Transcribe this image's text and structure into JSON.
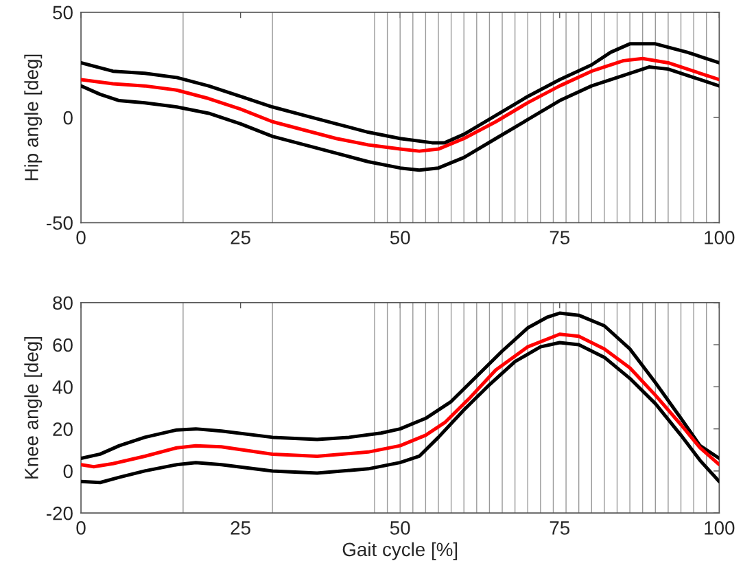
{
  "chart_data": [
    {
      "type": "line",
      "ylabel": "Hip angle [deg]",
      "xlim": [
        0,
        100
      ],
      "xticks": [
        0,
        25,
        50,
        75,
        100
      ],
      "ylim": [
        -50,
        50
      ],
      "yticks": [
        -50,
        0,
        50
      ],
      "grid": false,
      "legend": false,
      "series": [
        {
          "color": "#000000",
          "x": [
            0,
            5,
            10,
            15,
            20,
            25,
            30,
            35,
            40,
            45,
            50,
            55,
            57,
            60,
            65,
            70,
            75,
            80,
            83,
            86,
            90,
            95,
            100
          ],
          "values": [
            26,
            22,
            21,
            19,
            15,
            10,
            5,
            1,
            -3,
            -7,
            -10,
            -12,
            -12,
            -8,
            1,
            10,
            18,
            25,
            31,
            35,
            35,
            31,
            26
          ]
        },
        {
          "color": "#ff0000",
          "x": [
            0,
            5,
            10,
            15,
            20,
            25,
            30,
            35,
            40,
            45,
            50,
            53,
            56,
            60,
            65,
            70,
            75,
            80,
            85,
            88,
            92,
            96,
            100
          ],
          "values": [
            18,
            16,
            15,
            13,
            9,
            4,
            -2,
            -6,
            -10,
            -13,
            -15,
            -16,
            -15,
            -10,
            -2,
            7,
            15,
            22,
            27,
            28,
            26,
            22,
            18
          ]
        },
        {
          "color": "#000000",
          "x": [
            0,
            3,
            6,
            10,
            15,
            20,
            25,
            30,
            35,
            40,
            45,
            50,
            53,
            56,
            60,
            65,
            70,
            75,
            80,
            85,
            89,
            92,
            96,
            100
          ],
          "values": [
            15,
            11,
            8,
            7,
            5,
            2,
            -3,
            -9,
            -13,
            -17,
            -21,
            -24,
            -25,
            -24,
            -19,
            -10,
            -1,
            8,
            15,
            20,
            24,
            23,
            19,
            15
          ]
        }
      ],
      "ref_lines": [
        {
          "axis": "x",
          "value": 16,
          "color": "#999999"
        },
        {
          "axis": "x",
          "value": 30,
          "color": "#999999"
        },
        {
          "axis": "x",
          "value": 46,
          "color": "#999999"
        },
        {
          "axis": "x",
          "value": 48,
          "color": "#999999"
        },
        {
          "axis": "x",
          "value": 50,
          "color": "#999999"
        },
        {
          "axis": "x",
          "value": 52,
          "color": "#999999"
        },
        {
          "axis": "x",
          "value": 54,
          "color": "#999999"
        },
        {
          "axis": "x",
          "value": 56,
          "color": "#999999"
        },
        {
          "axis": "x",
          "value": 58,
          "color": "#999999"
        },
        {
          "axis": "x",
          "value": 60,
          "color": "#999999"
        },
        {
          "axis": "x",
          "value": 62,
          "color": "#999999"
        },
        {
          "axis": "x",
          "value": 64,
          "color": "#999999"
        },
        {
          "axis": "x",
          "value": 66,
          "color": "#999999"
        },
        {
          "axis": "x",
          "value": 68,
          "color": "#999999"
        },
        {
          "axis": "x",
          "value": 70,
          "color": "#999999"
        },
        {
          "axis": "x",
          "value": 72,
          "color": "#999999"
        },
        {
          "axis": "x",
          "value": 74,
          "color": "#999999"
        },
        {
          "axis": "x",
          "value": 76,
          "color": "#999999"
        },
        {
          "axis": "x",
          "value": 78,
          "color": "#999999"
        },
        {
          "axis": "x",
          "value": 80,
          "color": "#999999"
        },
        {
          "axis": "x",
          "value": 82,
          "color": "#999999"
        },
        {
          "axis": "x",
          "value": 84,
          "color": "#999999"
        },
        {
          "axis": "x",
          "value": 86,
          "color": "#999999"
        },
        {
          "axis": "x",
          "value": 88,
          "color": "#999999"
        },
        {
          "axis": "x",
          "value": 90,
          "color": "#999999"
        },
        {
          "axis": "x",
          "value": 92,
          "color": "#999999"
        },
        {
          "axis": "x",
          "value": 94,
          "color": "#999999"
        },
        {
          "axis": "x",
          "value": 96,
          "color": "#999999"
        },
        {
          "axis": "x",
          "value": 98,
          "color": "#999999"
        }
      ]
    },
    {
      "type": "line",
      "xlabel": "Gait cycle [%]",
      "ylabel": "Knee angle [deg]",
      "xlim": [
        0,
        100
      ],
      "xticks": [
        0,
        25,
        50,
        75,
        100
      ],
      "ylim": [
        -20,
        80
      ],
      "yticks": [
        -20,
        0,
        20,
        40,
        60,
        80
      ],
      "grid": false,
      "legend": false,
      "series": [
        {
          "color": "#000000",
          "x": [
            0,
            3,
            6,
            10,
            15,
            18,
            22,
            30,
            37,
            42,
            47,
            50,
            54,
            58,
            62,
            66,
            70,
            73,
            75,
            78,
            82,
            86,
            90,
            94,
            97,
            100
          ],
          "values": [
            6,
            8,
            12,
            16,
            19.5,
            20,
            19,
            16,
            15,
            16,
            18,
            20,
            25,
            33,
            45,
            57,
            68,
            73,
            75,
            74,
            69,
            58,
            42,
            25,
            12,
            6
          ]
        },
        {
          "color": "#ff0000",
          "x": [
            0,
            2,
            5,
            10,
            15,
            18,
            22,
            30,
            37,
            45,
            50,
            54,
            57,
            61,
            65,
            70,
            75,
            78,
            82,
            86,
            90,
            94,
            97,
            100
          ],
          "values": [
            3,
            2,
            3.5,
            7,
            11,
            12,
            11.5,
            8,
            7,
            9,
            12,
            17,
            23,
            35,
            48,
            59,
            65,
            64,
            58,
            49,
            36,
            22,
            11,
            3
          ]
        },
        {
          "color": "#000000",
          "x": [
            0,
            3,
            6,
            10,
            15,
            18,
            22,
            30,
            37,
            45,
            50,
            53,
            56,
            60,
            64,
            68,
            72,
            75,
            78,
            82,
            86,
            90,
            94,
            97,
            100
          ],
          "values": [
            -5,
            -5.5,
            -3,
            0,
            3,
            4,
            3,
            0,
            -1,
            1,
            4,
            7,
            16,
            29,
            41,
            52,
            59,
            61,
            60,
            54,
            44,
            32,
            17,
            5,
            -5
          ]
        }
      ],
      "ref_lines": [
        {
          "axis": "x",
          "value": 16,
          "color": "#999999"
        },
        {
          "axis": "x",
          "value": 30,
          "color": "#999999"
        },
        {
          "axis": "x",
          "value": 46,
          "color": "#999999"
        },
        {
          "axis": "x",
          "value": 48,
          "color": "#999999"
        },
        {
          "axis": "x",
          "value": 50,
          "color": "#999999"
        },
        {
          "axis": "x",
          "value": 52,
          "color": "#999999"
        },
        {
          "axis": "x",
          "value": 54,
          "color": "#999999"
        },
        {
          "axis": "x",
          "value": 56,
          "color": "#999999"
        },
        {
          "axis": "x",
          "value": 58,
          "color": "#999999"
        },
        {
          "axis": "x",
          "value": 60,
          "color": "#999999"
        },
        {
          "axis": "x",
          "value": 62,
          "color": "#999999"
        },
        {
          "axis": "x",
          "value": 64,
          "color": "#999999"
        },
        {
          "axis": "x",
          "value": 66,
          "color": "#999999"
        },
        {
          "axis": "x",
          "value": 68,
          "color": "#999999"
        },
        {
          "axis": "x",
          "value": 70,
          "color": "#999999"
        },
        {
          "axis": "x",
          "value": 72,
          "color": "#999999"
        },
        {
          "axis": "x",
          "value": 74,
          "color": "#999999"
        },
        {
          "axis": "x",
          "value": 76,
          "color": "#999999"
        },
        {
          "axis": "x",
          "value": 78,
          "color": "#999999"
        },
        {
          "axis": "x",
          "value": 80,
          "color": "#999999"
        },
        {
          "axis": "x",
          "value": 82,
          "color": "#999999"
        },
        {
          "axis": "x",
          "value": 84,
          "color": "#999999"
        },
        {
          "axis": "x",
          "value": 86,
          "color": "#999999"
        },
        {
          "axis": "x",
          "value": 88,
          "color": "#999999"
        },
        {
          "axis": "x",
          "value": 90,
          "color": "#999999"
        },
        {
          "axis": "x",
          "value": 92,
          "color": "#999999"
        },
        {
          "axis": "x",
          "value": 94,
          "color": "#999999"
        },
        {
          "axis": "x",
          "value": 96,
          "color": "#999999"
        },
        {
          "axis": "x",
          "value": 98,
          "color": "#999999"
        }
      ]
    }
  ]
}
